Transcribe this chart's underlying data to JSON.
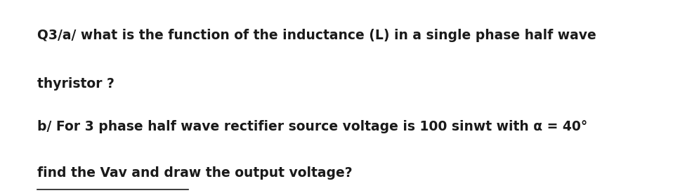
{
  "background_color": "#ffffff",
  "line1": "Q3/a/ what is the function of the inductance (L) in a single phase half wave",
  "line2": "thyristor ?",
  "line3": "b/ For 3 phase half wave rectifier source voltage is 100 sinwt with α = 40°",
  "line4": "find the Vav and draw the output voltage?",
  "text_color": "#1a1a1a",
  "font_size": 13.5,
  "fig_width": 9.58,
  "fig_height": 2.75,
  "dpi": 100
}
